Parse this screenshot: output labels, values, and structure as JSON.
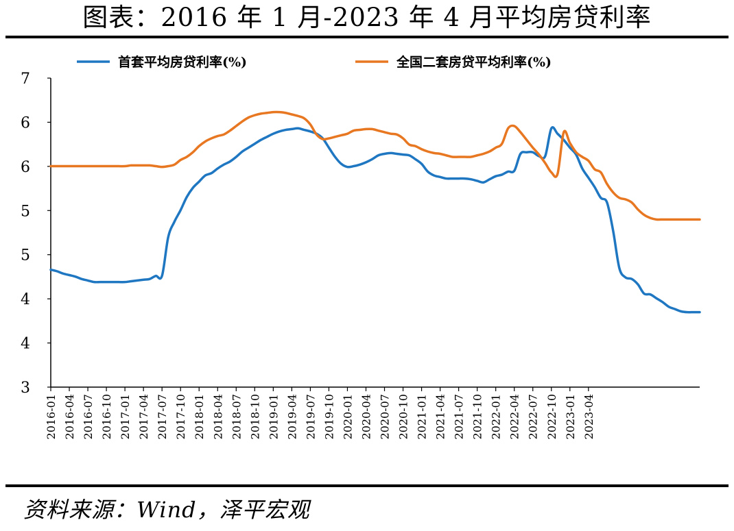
{
  "header": {
    "title": "图表：2016 年 1 月-2023 年 4 月平均房贷利率"
  },
  "footer": {
    "source": "资料来源：Wind，泽平宏观"
  },
  "colors": {
    "first_home": "#1f77c2",
    "second_home": "#e87722",
    "axis": "#000000"
  },
  "chart_data": {
    "type": "line",
    "title": "图表：2016 年 1 月-2023 年 4 月平均房贷利率",
    "xlabel": "",
    "ylabel": "",
    "ylim": [
      3,
      7
    ],
    "y_tick_labels": [
      "3",
      "4",
      "4",
      "5",
      "5",
      "6",
      "6",
      "7"
    ],
    "x_tick_labels": [
      "2016-01",
      "2016-04",
      "2016-07",
      "2016-10",
      "2017-01",
      "2017-04",
      "2017-07",
      "2017-10",
      "2018-01",
      "2018-04",
      "2018-07",
      "2018-10",
      "2019-01",
      "2019-04",
      "2019-07",
      "2019-10",
      "2020-01",
      "2020-04",
      "2020-07",
      "2020-10",
      "2021-01",
      "2021-04",
      "2021-07",
      "2021-10",
      "2022-01",
      "2022-04",
      "2022-07",
      "2022-10",
      "2023-01",
      "2023-04"
    ],
    "legend": "top",
    "grid": false,
    "series": [
      {
        "name": "首套平均房贷利率(%)",
        "color": "#1f77c2",
        "values": [
          4.52,
          4.5,
          4.47,
          4.45,
          4.43,
          4.4,
          4.38,
          4.36,
          4.36,
          4.36,
          4.36,
          4.36,
          4.36,
          4.37,
          4.38,
          4.39,
          4.4,
          4.44,
          4.44,
          4.94,
          5.14,
          5.29,
          5.46,
          5.58,
          5.66,
          5.74,
          5.77,
          5.83,
          5.88,
          5.92,
          5.98,
          6.05,
          6.1,
          6.15,
          6.2,
          6.24,
          6.28,
          6.31,
          6.33,
          6.34,
          6.35,
          6.33,
          6.31,
          6.28,
          6.22,
          6.1,
          5.98,
          5.89,
          5.85,
          5.86,
          5.88,
          5.91,
          5.95,
          6.0,
          6.02,
          6.03,
          6.02,
          6.01,
          6.0,
          5.95,
          5.89,
          5.79,
          5.74,
          5.72,
          5.7,
          5.7,
          5.7,
          5.7,
          5.69,
          5.67,
          5.65,
          5.69,
          5.73,
          5.75,
          5.79,
          5.8,
          6.02,
          6.04,
          6.04,
          5.99,
          5.99,
          6.35,
          6.28,
          6.2,
          6.1,
          6.01,
          5.83,
          5.71,
          5.59,
          5.45,
          5.39,
          5.02,
          4.54,
          4.42,
          4.4,
          4.33,
          4.21,
          4.2,
          4.15,
          4.1,
          4.04,
          4.01,
          3.98,
          3.97,
          3.97,
          3.97
        ]
      },
      {
        "name": "全国二套房贷平均利率(%)",
        "color": "#e87722",
        "values": [
          5.86,
          5.86,
          5.86,
          5.86,
          5.86,
          5.86,
          5.86,
          5.86,
          5.86,
          5.86,
          5.86,
          5.86,
          5.86,
          5.87,
          5.87,
          5.87,
          5.87,
          5.86,
          5.85,
          5.86,
          5.88,
          5.94,
          5.98,
          6.04,
          6.12,
          6.18,
          6.22,
          6.25,
          6.27,
          6.32,
          6.38,
          6.44,
          6.49,
          6.52,
          6.54,
          6.55,
          6.56,
          6.56,
          6.55,
          6.53,
          6.51,
          6.48,
          6.4,
          6.27,
          6.21,
          6.22,
          6.24,
          6.26,
          6.28,
          6.32,
          6.33,
          6.34,
          6.34,
          6.32,
          6.3,
          6.28,
          6.27,
          6.22,
          6.14,
          6.12,
          6.08,
          6.05,
          6.03,
          6.02,
          6.0,
          5.98,
          5.98,
          5.98,
          5.98,
          6.0,
          6.02,
          6.05,
          6.1,
          6.15,
          6.35,
          6.38,
          6.3,
          6.2,
          6.1,
          6.01,
          5.9,
          5.78,
          5.76,
          6.3,
          6.16,
          6.04,
          5.98,
          5.93,
          5.82,
          5.78,
          5.63,
          5.52,
          5.45,
          5.43,
          5.39,
          5.3,
          5.23,
          5.19,
          5.17,
          5.17,
          5.17,
          5.17,
          5.17,
          5.17,
          5.17,
          5.17
        ]
      }
    ]
  }
}
